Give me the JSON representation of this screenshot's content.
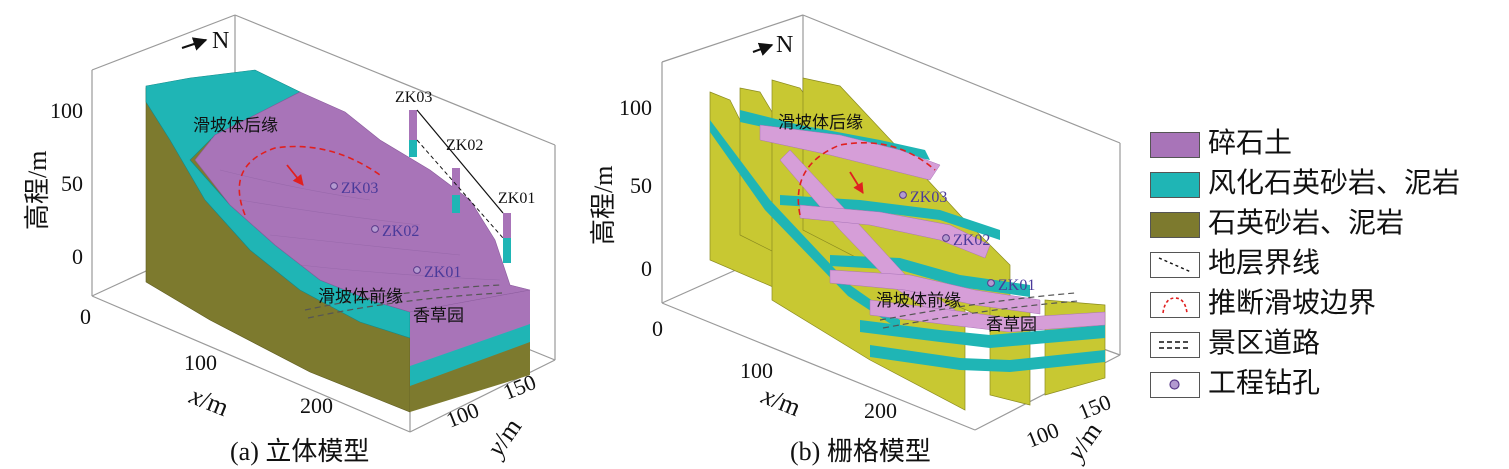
{
  "panels": [
    {
      "caption": "(a) 立体模型",
      "north": "N",
      "z_axis": {
        "label": "高程/m",
        "ticks": [
          "100",
          "50",
          "0"
        ]
      },
      "x_axis": {
        "label_var": "x",
        "label_unit": "/m",
        "ticks": [
          "0",
          "100",
          "200"
        ]
      },
      "y_axis": {
        "label_var": "y",
        "label_unit": "/m",
        "ticks": [
          "100",
          "150"
        ]
      },
      "boreholes": [
        "ZK03",
        "ZK02",
        "ZK01"
      ],
      "column_labels": [
        "ZK03",
        "ZK02",
        "ZK01"
      ],
      "annotations": {
        "rear": "滑坡体后缘",
        "front": "滑坡体前缘",
        "village": "香草园"
      }
    },
    {
      "caption": "(b) 栅格模型",
      "north": "N",
      "z_axis": {
        "label": "高程/m",
        "ticks": [
          "100",
          "50",
          "0"
        ]
      },
      "x_axis": {
        "label_var": "x",
        "label_unit": "/m",
        "ticks": [
          "0",
          "100",
          "200"
        ]
      },
      "y_axis": {
        "label_var": "y",
        "label_unit": "/m",
        "ticks": [
          "100",
          "150"
        ]
      },
      "boreholes": [
        "ZK03",
        "ZK02",
        "ZK01"
      ],
      "annotations": {
        "rear": "滑坡体后缘",
        "front": "滑坡体前缘",
        "village": "香草园"
      }
    }
  ],
  "legend": [
    {
      "label": "碎石土",
      "swatch": "fill",
      "color": "#a874b8"
    },
    {
      "label": "风化石英砂岩、泥岩",
      "swatch": "fill",
      "color": "#1fb5b5"
    },
    {
      "label": "石英砂岩、泥岩",
      "swatch": "fill",
      "color": "#7d7a2e"
    },
    {
      "label": "地层界线",
      "swatch": "dashed-diagonal",
      "color": "#111111"
    },
    {
      "label": "推断滑坡边界",
      "swatch": "dashed-arc",
      "color": "#e02020"
    },
    {
      "label": "景区道路",
      "swatch": "double-dashed",
      "color": "#111111"
    },
    {
      "label": "工程钻孔",
      "swatch": "circle",
      "color": "#7a5aa8"
    }
  ],
  "colors": {
    "debris": "#a874b8",
    "weathered": "#1fb5b5",
    "bedrock": "#7d7a2e",
    "grid_bedrock": "#c8c832"
  }
}
